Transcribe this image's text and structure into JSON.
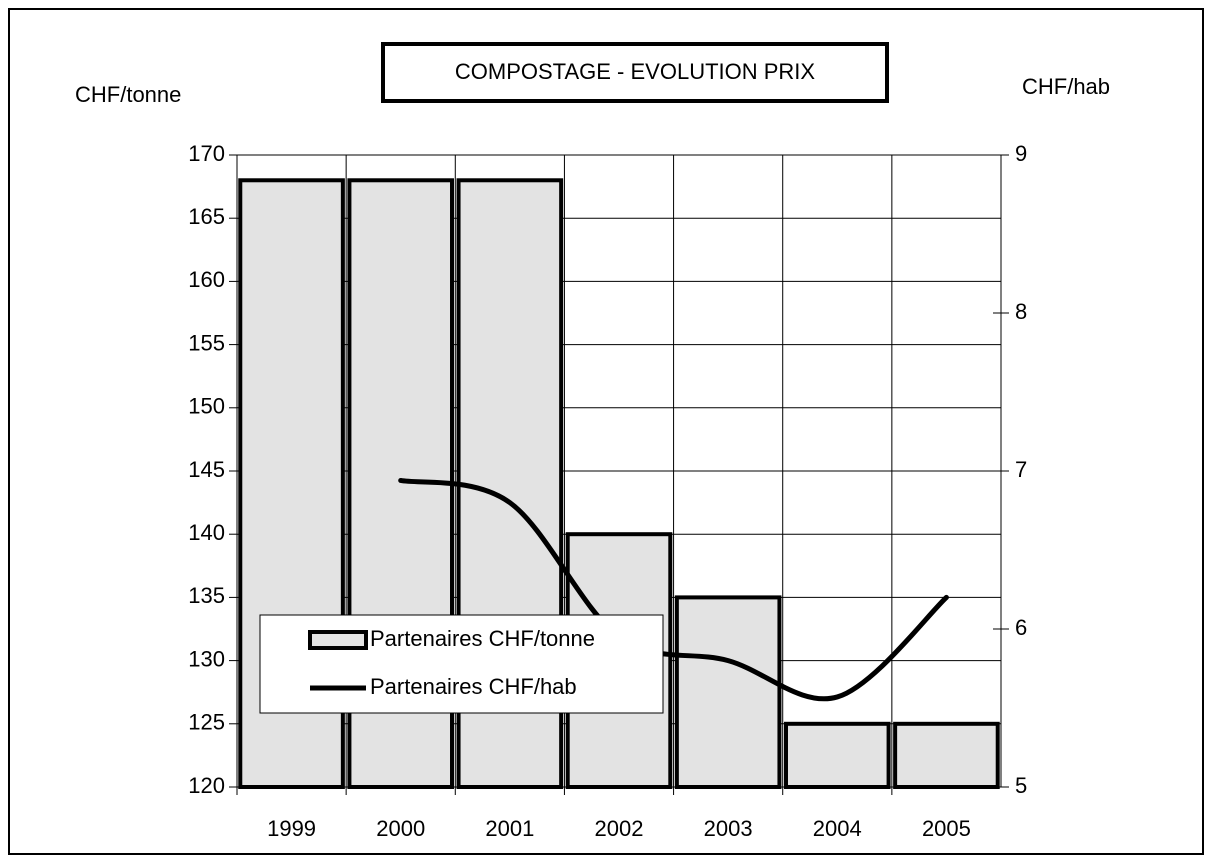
{
  "chart_data": {
    "type": "bar_line",
    "title": "COMPOSTAGE - EVOLUTION PRIX",
    "ylabel": "CHF/tonne",
    "y2label": "CHF/hab",
    "categories": [
      "1999",
      "2000",
      "2001",
      "2002",
      "2003",
      "2004",
      "2005"
    ],
    "series": [
      {
        "name": "Partenaires CHF/tonne",
        "type": "bar",
        "color": "#e3e3e3",
        "values": [
          168,
          168,
          168,
          140,
          135,
          125,
          125
        ]
      },
      {
        "name": "Partenaires CHF/hab",
        "type": "line",
        "axis": "y2",
        "color": "#000000",
        "values": [
          null,
          6.94,
          6.8,
          5.95,
          5.8,
          5.57,
          6.2
        ]
      }
    ],
    "ylim": [
      120,
      170
    ],
    "yticks": [
      120,
      125,
      130,
      135,
      140,
      145,
      150,
      155,
      160,
      165,
      170
    ],
    "y2lim": [
      5,
      9
    ],
    "y2ticks": [
      5,
      6,
      7,
      8,
      9
    ],
    "grid": true
  }
}
